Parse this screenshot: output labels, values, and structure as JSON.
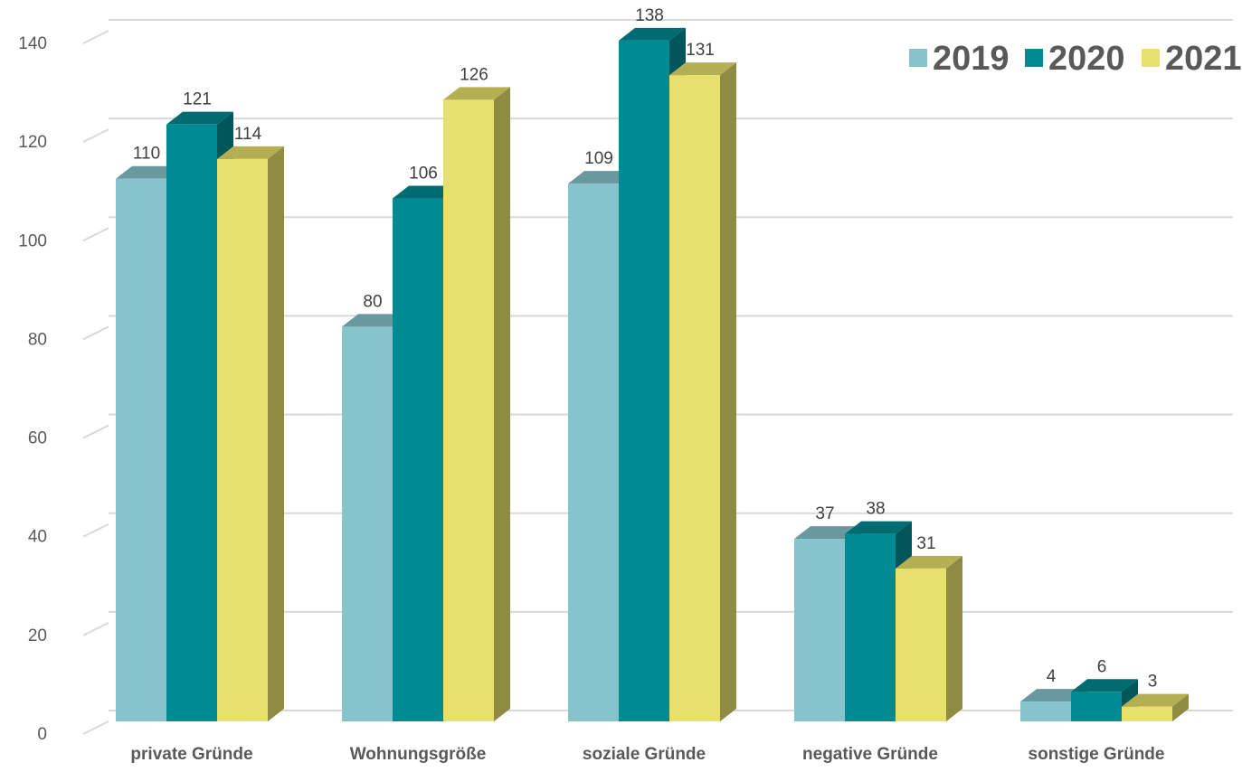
{
  "chart_data": {
    "type": "bar",
    "categories": [
      "private Gründe",
      "Wohnungsgröße",
      "soziale Gründe",
      "negative Gründe",
      "sonstige Gründe"
    ],
    "series": [
      {
        "name": "2019",
        "values": [
          110,
          80,
          109,
          37,
          4
        ],
        "color": "#86c3cb"
      },
      {
        "name": "2020",
        "values": [
          121,
          106,
          138,
          38,
          6
        ],
        "color": "#008b92"
      },
      {
        "name": "2021",
        "values": [
          114,
          126,
          131,
          31,
          3
        ],
        "color": "#e8e06c"
      }
    ],
    "ylim": [
      0,
      140
    ],
    "yticks": [
      "0",
      "20",
      "40",
      "60",
      "80",
      "100",
      "120",
      "140"
    ],
    "grid": true,
    "legend_position": "top-right",
    "style": "3d-clustered-column"
  }
}
